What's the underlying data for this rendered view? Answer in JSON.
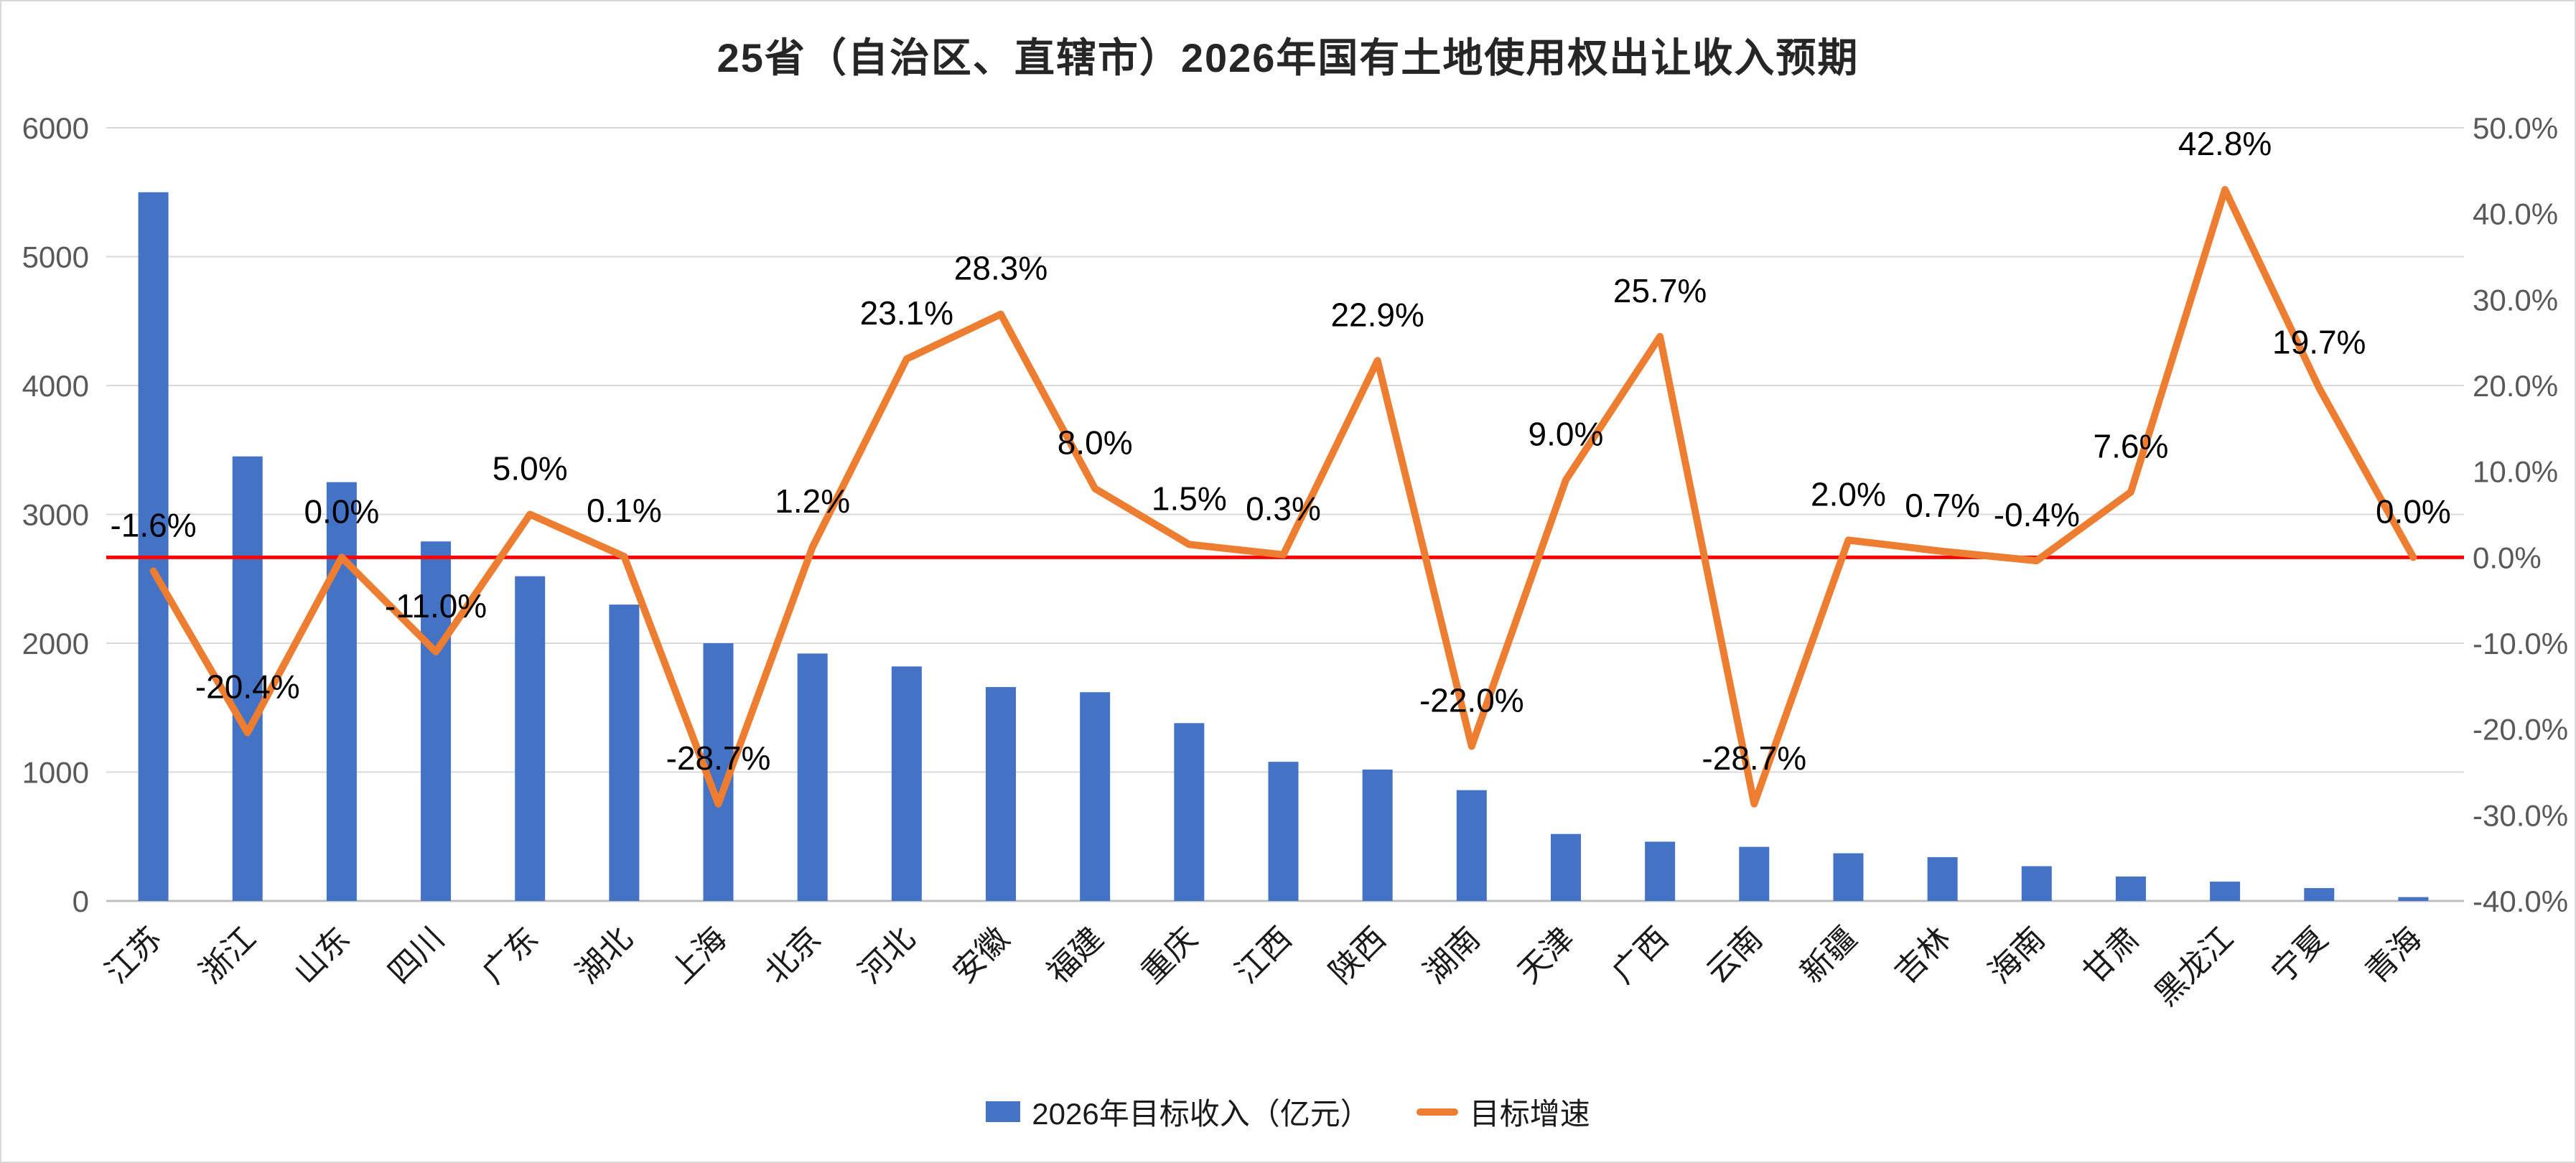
{
  "title": "25省（自治区、直辖市）2026年国有土地使用权出让收入预期",
  "colors": {
    "bar": "#4472C4",
    "line": "#ED7D31",
    "zero_line": "#FF0000",
    "grid": "#D9D9D9",
    "axis_line": "#BFBFBF",
    "axis_text": "#595959",
    "data_label_text": "#000000",
    "category_text": "#1a1a1a"
  },
  "legend": {
    "items": [
      {
        "label": "2026年目标收入（亿元）",
        "swatch": "bar",
        "color": "#4472C4"
      },
      {
        "label": "目标增速",
        "swatch": "line",
        "color": "#ED7D31"
      }
    ]
  },
  "chart_data": {
    "type": "bar",
    "subtype": "combo-bar-line-dual-axis",
    "title": "25省（自治区、直辖市）2026年国有土地使用权出让收入预期",
    "categories": [
      "江苏",
      "浙江",
      "山东",
      "四川",
      "广东",
      "湖北",
      "上海",
      "北京",
      "河北",
      "安徽",
      "福建",
      "重庆",
      "江西",
      "陕西",
      "湖南",
      "天津",
      "广西",
      "云南",
      "新疆",
      "吉林",
      "海南",
      "甘肃",
      "黑龙江",
      "宁夏",
      "青海"
    ],
    "series": [
      {
        "name": "2026年目标收入（亿元）",
        "type": "bar",
        "axis": "left",
        "color": "#4472C4",
        "values": [
          5500,
          3450,
          3250,
          2790,
          2520,
          2300,
          2000,
          1920,
          1820,
          1660,
          1620,
          1380,
          1080,
          1020,
          860,
          520,
          460,
          420,
          370,
          340,
          270,
          190,
          150,
          100,
          30
        ]
      },
      {
        "name": "目标增速",
        "type": "line",
        "axis": "right",
        "color": "#ED7D31",
        "values_percent": [
          -1.6,
          -20.4,
          0.0,
          -11.0,
          5.0,
          0.1,
          -28.7,
          1.2,
          23.1,
          28.3,
          8.0,
          1.5,
          0.3,
          22.9,
          -22.0,
          9.0,
          25.7,
          -28.7,
          2.0,
          0.7,
          -0.4,
          7.6,
          42.8,
          19.7,
          0.0
        ],
        "data_labels": [
          "-1.6%",
          "-20.4%",
          "0.0%",
          "-11.0%",
          "5.0%",
          "0.1%",
          "-28.7%",
          "1.2%",
          "23.1%",
          "28.3%",
          "8.0%",
          "1.5%",
          "0.3%",
          "22.9%",
          "-22.0%",
          "9.0%",
          "25.7%",
          "-28.7%",
          "2.0%",
          "0.7%",
          "-0.4%",
          "7.6%",
          "42.8%",
          "19.7%",
          "0.0%"
        ]
      }
    ],
    "left_axis": {
      "min": 0,
      "max": 6000,
      "step": 1000,
      "ticks": [
        "0",
        "1000",
        "2000",
        "3000",
        "4000",
        "5000",
        "6000"
      ]
    },
    "right_axis": {
      "min": -40,
      "max": 50,
      "step": 10,
      "ticks": [
        "50.0%",
        "40.0%",
        "30.0%",
        "20.0%",
        "10.0%",
        "0.0%",
        "-10.0%",
        "-20.0%",
        "-30.0%",
        "-40.0%"
      ]
    },
    "reference_line": {
      "axis": "right",
      "value_percent": 0,
      "color": "#FF0000"
    },
    "grid": "horizontal",
    "legend_position": "bottom"
  }
}
